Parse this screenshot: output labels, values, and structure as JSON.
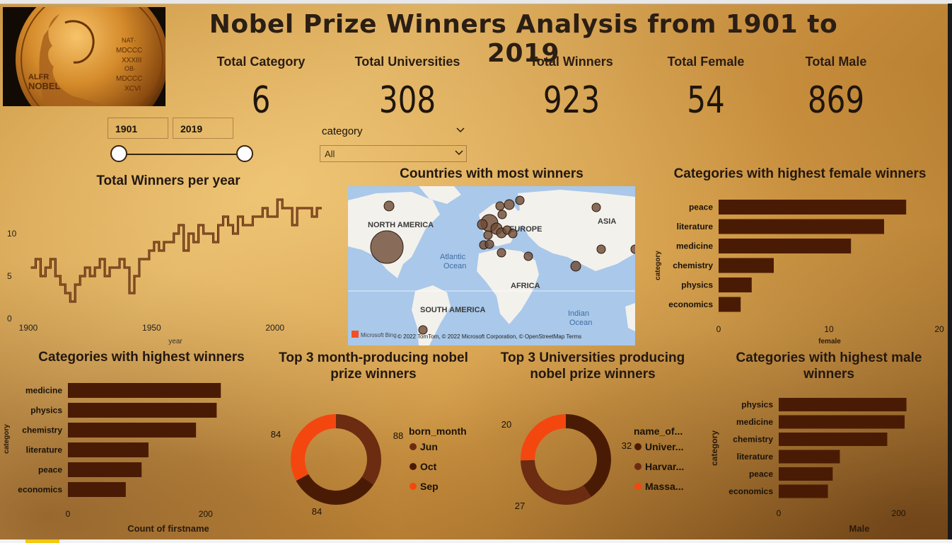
{
  "title": "Nobel Prize Winners Analysis from 1901 to 2019",
  "kpis": [
    {
      "label": "Total Category",
      "value": "6"
    },
    {
      "label": "Total Universities",
      "value": "308"
    },
    {
      "label": "Total Winners",
      "value": "923"
    },
    {
      "label": "Total Female",
      "value": "54"
    },
    {
      "label": "Total Male",
      "value": "869"
    }
  ],
  "year_filter": {
    "start": "1901",
    "end": "2019"
  },
  "category_filter": {
    "label": "category",
    "value": "All"
  },
  "colors": {
    "bar": "#4a1b04",
    "line": "#4a1b04",
    "orange": "#f4470f",
    "medium": "#6b2c12"
  },
  "map": {
    "title": "Countries with most winners",
    "labels": {
      "north_america": "NORTH AMERICA",
      "europe": "EUROPE",
      "asia": "ASIA",
      "africa": "AFRICA",
      "south_america": "SOUTH AMERICA",
      "atlantic": "Atlantic",
      "atlantic2": "Ocean",
      "indian": "Indian",
      "indian2": "Ocean"
    },
    "attribution": "© 2022 TomTom, © 2022 Microsoft Corporation, © OpenStreetMap  Terms",
    "bing": "Microsoft Bing"
  },
  "chart_data": [
    {
      "type": "line",
      "title": "Total Winners per year",
      "xlabel": "year",
      "ylabel": "",
      "xlim": [
        1901,
        2019
      ],
      "ylim": [
        0,
        15
      ],
      "xticks": [
        "1900",
        "1950",
        "2000"
      ],
      "yticks": [
        "0",
        "5",
        "10"
      ],
      "x": [
        1901,
        1903,
        1905,
        1907,
        1909,
        1911,
        1913,
        1915,
        1917,
        1919,
        1921,
        1923,
        1925,
        1927,
        1929,
        1931,
        1933,
        1935,
        1937,
        1939,
        1941,
        1943,
        1945,
        1947,
        1949,
        1951,
        1953,
        1955,
        1957,
        1959,
        1961,
        1963,
        1965,
        1967,
        1969,
        1971,
        1973,
        1975,
        1977,
        1979,
        1981,
        1983,
        1985,
        1987,
        1989,
        1991,
        1993,
        1995,
        1997,
        1999,
        2001,
        2003,
        2005,
        2007,
        2009,
        2011,
        2013,
        2015,
        2017,
        2019
      ],
      "values": [
        6,
        7,
        5,
        6,
        7,
        5,
        4,
        3,
        2,
        4,
        5,
        6,
        5,
        6,
        7,
        5,
        6,
        6,
        7,
        6,
        3,
        5,
        7,
        7,
        8,
        9,
        8,
        9,
        9,
        10,
        11,
        8,
        10,
        9,
        11,
        10,
        10,
        9,
        11,
        12,
        11,
        10,
        12,
        11,
        11,
        12,
        12,
        13,
        12,
        12,
        14,
        13,
        13,
        11,
        13,
        13,
        13,
        12,
        13,
        13
      ]
    },
    {
      "type": "bar",
      "title": "Categories with highest female winners",
      "categories": [
        "peace",
        "literature",
        "medicine",
        "chemistry",
        "physics",
        "economics"
      ],
      "values": [
        17,
        15,
        12,
        5,
        3,
        2
      ],
      "xlabel": "female",
      "ylabel": "category",
      "xlim": [
        0,
        20
      ],
      "xticks": [
        "0",
        "10",
        "20"
      ]
    },
    {
      "type": "bar",
      "title": "Categories with highest winners",
      "categories": [
        "medicine",
        "physics",
        "chemistry",
        "literature",
        "peace",
        "economics"
      ],
      "values": [
        222,
        216,
        186,
        117,
        107,
        84
      ],
      "xlabel": "Count of firstname",
      "ylabel": "category",
      "xlim": [
        0,
        230
      ],
      "xticks": [
        "0",
        "200"
      ]
    },
    {
      "type": "pie",
      "title": "Top 3 month-producing nobel prize winners",
      "legend_title": "born_month",
      "categories": [
        "Jun",
        "Oct",
        "Sep"
      ],
      "values": [
        88,
        84,
        84
      ]
    },
    {
      "type": "pie",
      "title": "Top 3 Universities producing nobel prize winners",
      "legend_title": "name_of...",
      "categories": [
        "Univer...",
        "Harvar...",
        "Massa..."
      ],
      "values": [
        32,
        27,
        20
      ]
    },
    {
      "type": "bar",
      "title": "Categories with highest male winners",
      "categories": [
        "physics",
        "medicine",
        "chemistry",
        "literature",
        "peace",
        "economics"
      ],
      "values": [
        213,
        210,
        181,
        102,
        90,
        82
      ],
      "xlabel": "Male",
      "ylabel": "category",
      "xlim": [
        0,
        230
      ],
      "xticks": [
        "0",
        "200"
      ]
    }
  ]
}
